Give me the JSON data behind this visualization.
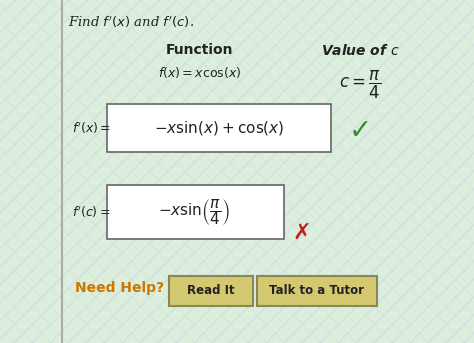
{
  "title_text": "Find $f'(x)$ and $f'(c)$.",
  "col_function_label": "Function",
  "col_value_label": "Value of $c$",
  "function_expr": "$f(x) = x \\cos(x)$",
  "value_expr": "$c = \\dfrac{\\pi}{4}$",
  "fpx_label": "$f'(x) =$",
  "fpx_answer": "$-x\\sin(x) + \\cos(x)$",
  "fpc_label": "$f'(c) =$",
  "fpc_answer": "$-x\\sin\\!\\left(\\dfrac{\\pi}{4}\\right)$",
  "need_help_text": "Need Help?",
  "btn1_text": "Read It",
  "btn2_text": "Talk to a Tutor",
  "bg_color": "#ddeedd",
  "left_border_color": "#aaaaaa",
  "box_bg": "#ffffff",
  "box_border": "#666666",
  "need_help_color": "#cc7700",
  "btn_bg": "#d4c870",
  "btn_border": "#888855",
  "check_color": "#3a8a3a",
  "cross_color": "#bb2222",
  "text_color": "#222222",
  "title_fontsize": 9.5,
  "label_fontsize": 9,
  "answer_fontsize": 11,
  "header_fontsize": 10
}
